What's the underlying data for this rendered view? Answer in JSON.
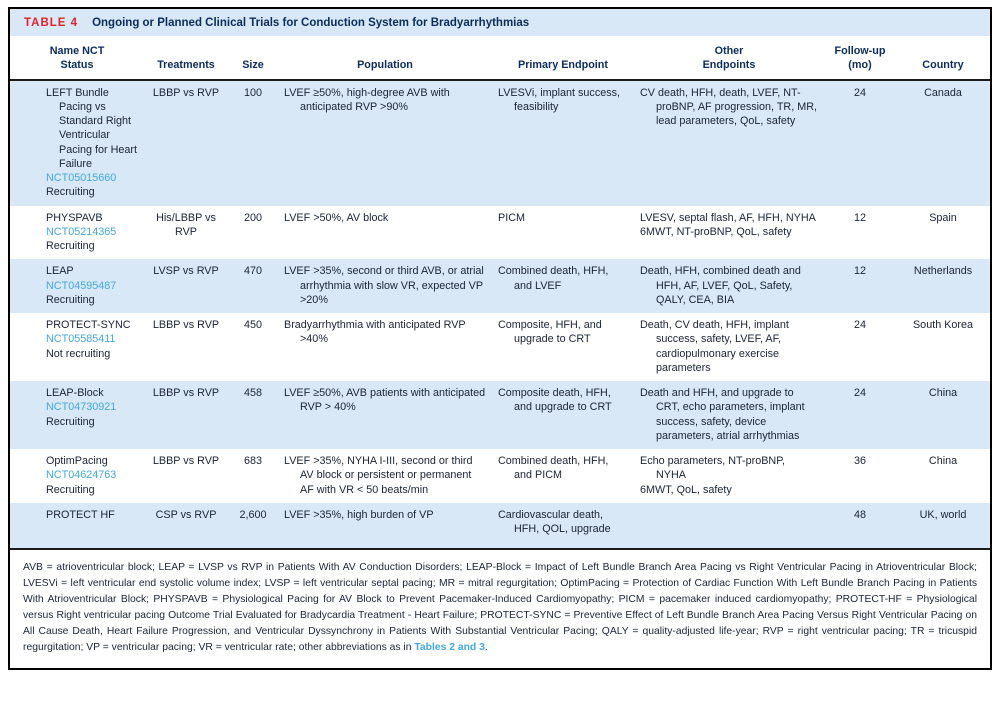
{
  "table": {
    "label": "TABLE 4",
    "title": "Ongoing or Planned Clinical Trials for Conduction System for Bradyarrhythmias",
    "headers": {
      "name": "Name NCT\nStatus",
      "treatments": "Treatments",
      "size": "Size",
      "population": "Population",
      "primary": "Primary Endpoint",
      "other": "Other\nEndpoints",
      "followup": "Follow-up\n(mo)",
      "country": "Country"
    },
    "rows": [
      {
        "name": "LEFT Bundle Pacing vs Standard Right Ventricular Pacing for Heart Failure",
        "nct": "NCT05015660",
        "status": "Recruiting",
        "treatments": "LBBP vs RVP",
        "size": "100",
        "population": "LVEF ≥50%, high-degree AVB with anticipated RVP >90%",
        "primary": "LVESVi, implant success, feasibility",
        "other": [
          "CV death, HFH, death, LVEF, NT-proBNP, AF progression, TR, MR, lead parameters, QoL, safety"
        ],
        "followup": "24",
        "country": "Canada"
      },
      {
        "name": "PHYSPAVB",
        "nct": "NCT05214365",
        "status": "Recruiting",
        "treatments": "His/LBBP vs RVP",
        "size": "200",
        "population": "LVEF >50%, AV block",
        "primary": "PICM",
        "other": [
          "LVESV, septal flash, AF, HFH, NYHA",
          "6MWT, NT-proBNP, QoL, safety"
        ],
        "followup": "12",
        "country": "Spain"
      },
      {
        "name": "LEAP",
        "nct": "NCT04595487",
        "status": "Recruiting",
        "treatments": "LVSP vs RVP",
        "size": "470",
        "population": "LVEF >35%, second or third AVB, or atrial arrhythmia with slow VR, expected VP >20%",
        "primary": "Combined death, HFH, and LVEF",
        "other": [
          "Death, HFH, combined death and HFH, AF, LVEF, QoL, Safety, QALY, CEA, BIA"
        ],
        "followup": "12",
        "country": "Netherlands"
      },
      {
        "name": "PROTECT-SYNC",
        "nct": "NCT05585411",
        "status": "Not recruiting",
        "treatments": "LBBP vs RVP",
        "size": "450",
        "population": "Bradyarrhythmia with anticipated RVP >40%",
        "primary": "Composite, HFH, and upgrade to CRT",
        "other": [
          "Death, CV death, HFH, implant success, safety, LVEF, AF, cardiopulmonary exercise parameters"
        ],
        "followup": "24",
        "country": "South Korea"
      },
      {
        "name": "LEAP-Block",
        "nct": "NCT04730921",
        "status": "Recruiting",
        "treatments": "LBBP vs RVP",
        "size": "458",
        "population": "LVEF ≥50%, AVB patients with anticipated RVP > 40%",
        "primary": "Composite death, HFH, and upgrade to CRT",
        "other": [
          "Death and HFH, and upgrade to CRT, echo parameters, implant success, safety, device parameters, atrial arrhythmias"
        ],
        "followup": "24",
        "country": "China"
      },
      {
        "name": "OptimPacing",
        "nct": "NCT04624763",
        "status": "Recruiting",
        "treatments": "LBBP vs RVP",
        "size": "683",
        "population": "LVEF >35%, NYHA I-III, second or third AV block or persistent or permanent AF with VR < 50 beats/min",
        "primary": "Combined death, HFH, and PICM",
        "other": [
          "Echo parameters, NT-proBNP, NYHA",
          "6MWT, QoL, safety"
        ],
        "followup": "36",
        "country": "China"
      },
      {
        "name": "PROTECT HF",
        "nct": "",
        "status": "",
        "treatments": "CSP vs RVP",
        "size": "2,600",
        "population": "LVEF >35%, high burden of VP",
        "primary": "Cardiovascular death, HFH, QOL, upgrade",
        "other": [
          ""
        ],
        "followup": "48",
        "country": "UK, world"
      }
    ],
    "footnote": {
      "text": "AVB = atrioventricular block; LEAP = LVSP vs RVP in Patients With AV Conduction Disorders; LEAP-Block = Impact of Left Bundle Branch Area Pacing vs Right Ventricular Pacing in Atrioventricular Block; LVESVi = left ventricular end systolic volume index; LVSP = left ventricular septal pacing; MR = mitral regurgitation; OptimPacing = Protection of Cardiac Function With Left Bundle Branch Pacing in Patients With Atrioventricular Block; PHYSPAVB = Physiological Pacing for AV Block to Prevent Pacemaker-Induced Cardiomyopathy; PICM = pacemaker induced cardiomyopathy; PROTECT-HF = Physiological versus Right ventricular pacing Outcome Trial Evaluated for Bradycardia Treatment - Heart Failure; PROTECT-SYNC = Preventive Effect of Left Bundle Branch Area Pacing Versus Right Ventricular Pacing on All Cause Death, Heart Failure Progression, and Ventricular Dyssynchrony in Patients With Substantial Ventricular Pacing; QALY = quality-adjusted life-year; RVP = right ventricular pacing; TR = tricuspid regurgitation; VP = ventricular pacing; VR = ventricular rate; other abbreviations as in ",
      "link": "Tables 2 and 3",
      "after": "."
    },
    "colors": {
      "accent_red": "#e12128",
      "navy": "#0a2d5e",
      "link_blue": "#3fa9dd",
      "row_stripe": "#d9e8f6"
    }
  }
}
